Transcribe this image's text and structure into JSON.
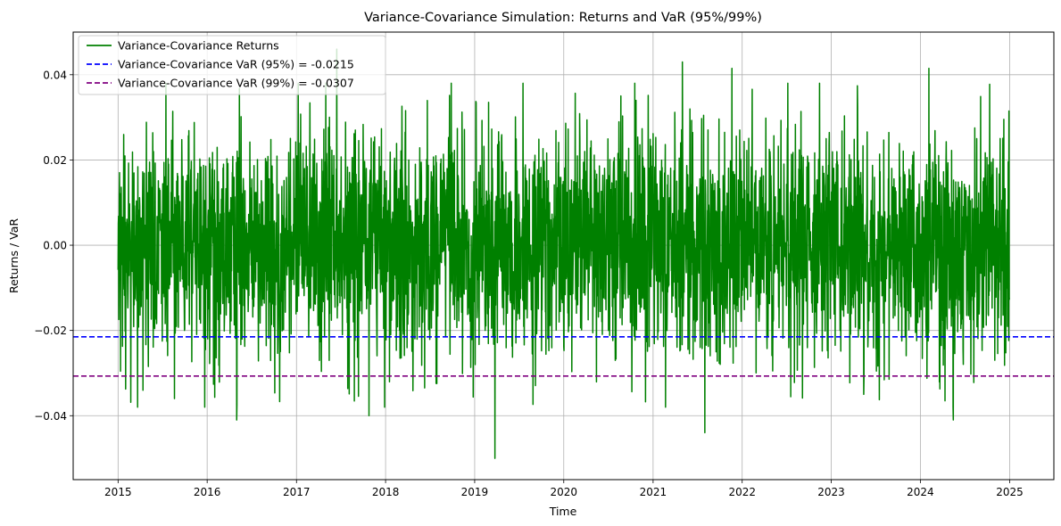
{
  "chart_data": {
    "type": "line",
    "title": "Variance-Covariance Simulation: Returns and VaR (95%/99%)",
    "xlabel": "Time",
    "ylabel": "Returns / VaR",
    "xlim": [
      "2014-07-01",
      "2025-07-01"
    ],
    "ylim": [
      -0.055,
      0.05
    ],
    "x_ticks": [
      "2015",
      "2016",
      "2017",
      "2018",
      "2019",
      "2020",
      "2021",
      "2022",
      "2023",
      "2024",
      "2025"
    ],
    "y_ticks": [
      -0.04,
      -0.02,
      0.0,
      0.02,
      0.04
    ],
    "y_tick_labels": [
      "−0.04",
      "−0.02",
      "0.00",
      "0.02",
      "0.04"
    ],
    "grid": true,
    "legend_position": "top-left",
    "series": [
      {
        "name": "Variance-Covariance Returns",
        "kind": "line",
        "color": "#008000",
        "x_start": "2015-01-01",
        "x_end": "2024-12-31",
        "frequency": "daily",
        "mean": 0.0,
        "std": 0.013,
        "notable_points": [
          {
            "x": "2015-08-20",
            "y": -0.036
          },
          {
            "x": "2016-05-01",
            "y": -0.041
          },
          {
            "x": "2017-06-15",
            "y": 0.046
          },
          {
            "x": "2017-10-25",
            "y": -0.04
          },
          {
            "x": "2019-03-25",
            "y": -0.05
          },
          {
            "x": "2021-05-01",
            "y": 0.043
          },
          {
            "x": "2021-08-01",
            "y": -0.044
          },
          {
            "x": "2021-11-20",
            "y": 0.0415
          },
          {
            "x": "2024-02-05",
            "y": 0.0415
          },
          {
            "x": "2024-05-15",
            "y": -0.041
          }
        ]
      },
      {
        "name": "Variance-Covariance VaR (95%) = -0.0215",
        "kind": "hline",
        "y": -0.0215,
        "color": "#0000ff",
        "style": "dashed"
      },
      {
        "name": "Variance-Covariance VaR (99%) = -0.0307",
        "kind": "hline",
        "y": -0.0307,
        "color": "#800080",
        "style": "dashed"
      }
    ]
  }
}
